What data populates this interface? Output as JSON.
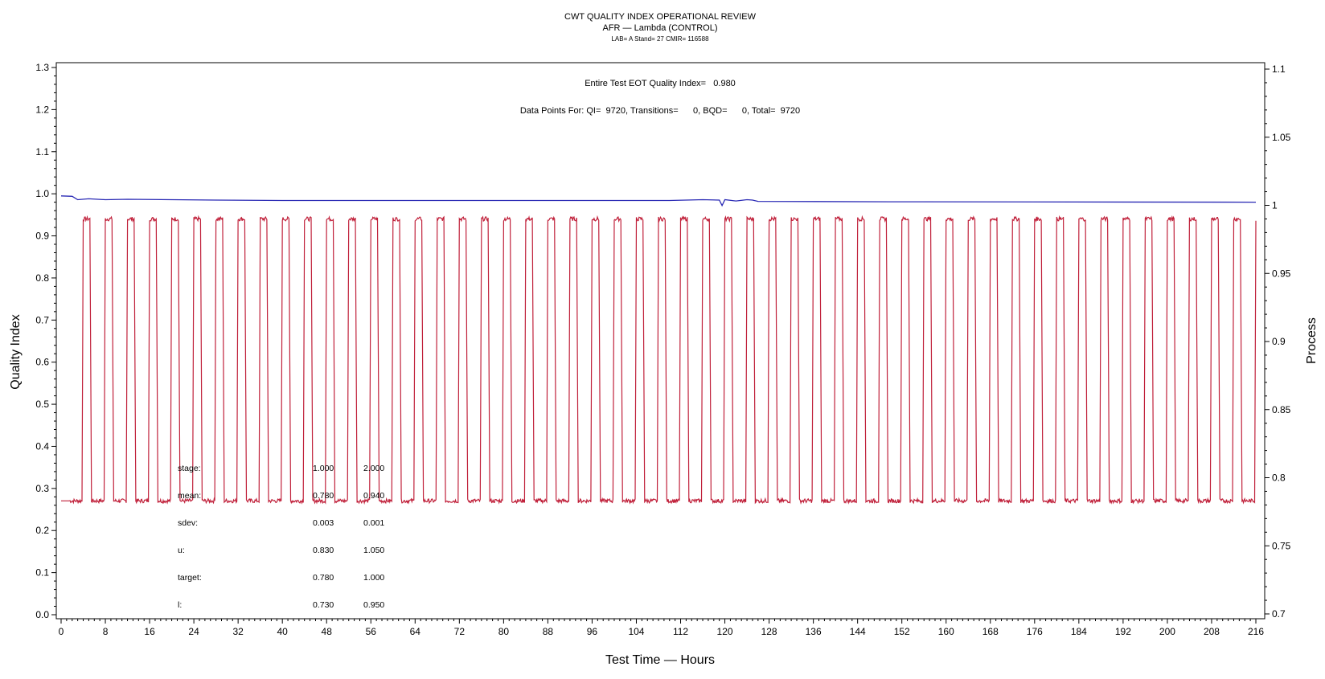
{
  "chart_data": {
    "type": "line",
    "title": "CWT QUALITY INDEX OPERATIONAL REVIEW",
    "subtitle": "AFR — Lambda (CONTROL)",
    "subtitle2": "LAB= A Stand= 27 CMIR= 116588",
    "xlabel": "Test Time — Hours",
    "ylabel_left": "Quality Index",
    "ylabel_right": "Process",
    "xlim": [
      0,
      216
    ],
    "xticks": [
      "0",
      "8",
      "16",
      "24",
      "32",
      "40",
      "48",
      "56",
      "64",
      "72",
      "80",
      "88",
      "96",
      "104",
      "112",
      "120",
      "128",
      "136",
      "144",
      "152",
      "160",
      "168",
      "176",
      "184",
      "192",
      "200",
      "208",
      "216"
    ],
    "ylim_left": [
      0.0,
      1.3
    ],
    "yticks_left": [
      "0.0",
      "0.1",
      "0.2",
      "0.3",
      "0.4",
      "0.5",
      "0.6",
      "0.7",
      "0.8",
      "0.9",
      "1.0",
      "1.1",
      "1.2",
      "1.3"
    ],
    "ylim_right": [
      0.7,
      1.1
    ],
    "yticks_right": [
      "0.7",
      "0.75",
      "0.8",
      "0.85",
      "0.9",
      "0.95",
      "1",
      "1.05",
      "1.1"
    ],
    "annotations": {
      "eot_qi": "Entire Test EOT Quality Index=   0.980",
      "data_points": "Data Points For: QI=  9720, Transitions=      0, BQD=      0, Total=  9720"
    },
    "stats_table": {
      "rows": [
        {
          "label": "stage:",
          "v1": "1.000",
          "v2": "2.000"
        },
        {
          "label": "mean:",
          "v1": "0.780",
          "v2": "0.940"
        },
        {
          "label": "sdev:",
          "v1": "0.003",
          "v2": "0.001"
        },
        {
          "label": "u:",
          "v1": "0.830",
          "v2": "1.050"
        },
        {
          "label": "target:",
          "v1": "0.780",
          "v2": "1.000"
        },
        {
          "label": "l:",
          "v1": "0.730",
          "v2": "0.950"
        }
      ]
    },
    "series": [
      {
        "axis": "right",
        "color": "#c0203a",
        "pattern": "cyclic square wave",
        "period_hours": 4,
        "low_value": 0.783,
        "high_value": 0.99,
        "low_duration_hours": 2.3,
        "high_duration_hours": 1.3
      },
      {
        "axis": "left",
        "color": "#2a2ab5",
        "x": [
          0,
          2,
          3,
          5,
          8,
          12,
          20,
          28,
          40,
          60,
          90,
          110,
          116,
          119,
          119.5,
          120,
          122,
          124,
          125,
          126,
          150,
          216
        ],
        "y": [
          0.995,
          0.994,
          0.986,
          0.988,
          0.986,
          0.987,
          0.986,
          0.985,
          0.984,
          0.984,
          0.984,
          0.984,
          0.986,
          0.985,
          0.972,
          0.986,
          0.983,
          0.986,
          0.985,
          0.982,
          0.981,
          0.98
        ]
      }
    ]
  }
}
